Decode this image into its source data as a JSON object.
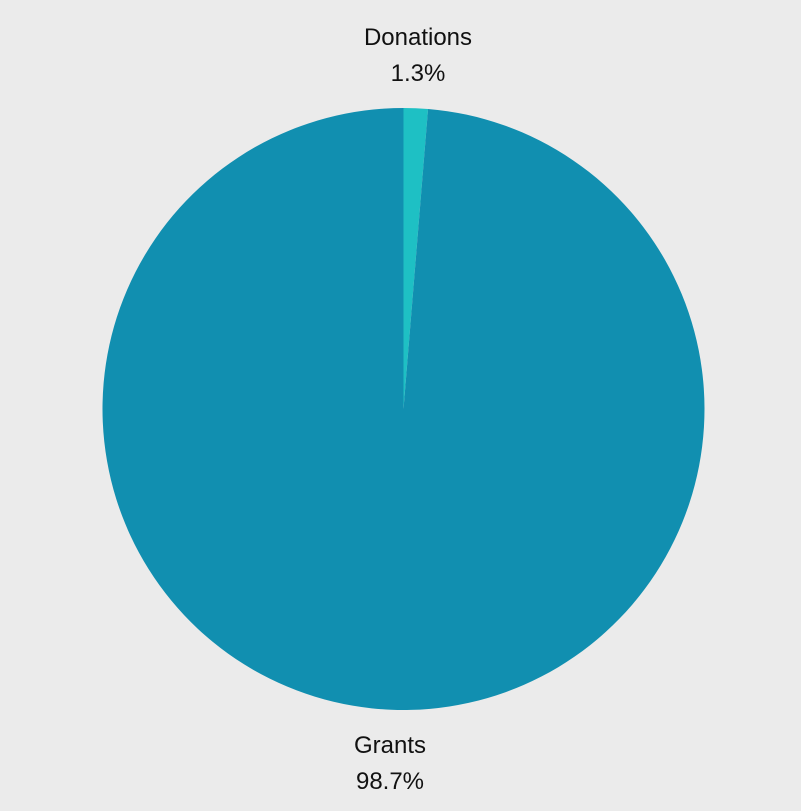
{
  "chart_data": {
    "type": "pie",
    "title": "",
    "slices": [
      {
        "label": "Donations",
        "value": 1.3,
        "display": "1.3%",
        "color": "#1ec0c4"
      },
      {
        "label": "Grants",
        "value": 98.7,
        "display": "98.7%",
        "color": "#118fb0"
      }
    ],
    "start_angle": "top",
    "direction": "clockwise",
    "legend": "none",
    "background": "#ebebeb"
  }
}
